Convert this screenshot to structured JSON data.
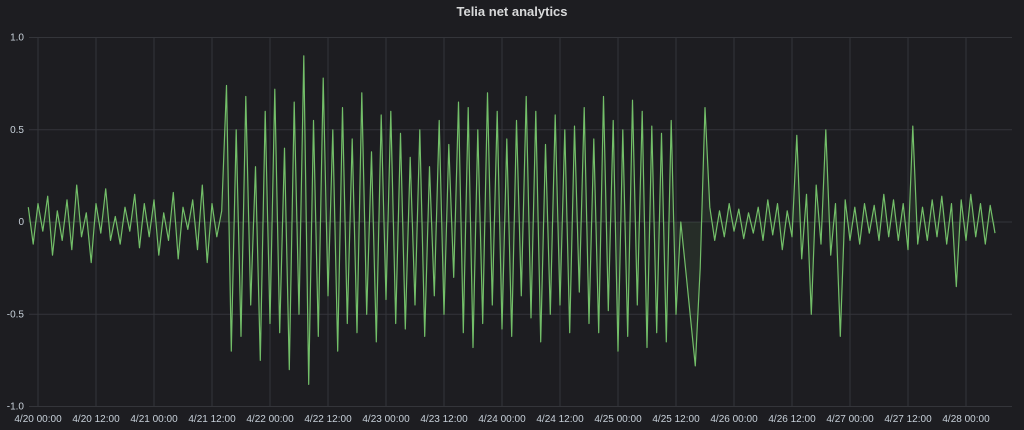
{
  "chart_data": {
    "type": "line",
    "title": "Telia net analytics",
    "xlabel": "",
    "ylabel": "",
    "ylim": [
      -1.0,
      1.0
    ],
    "yticks": [
      "1.0",
      "0.5",
      "0",
      "-0.5",
      "-1.0"
    ],
    "ytick_values": [
      1.0,
      0.5,
      0,
      -0.5,
      -1.0
    ],
    "xticks": [
      "4/20 00:00",
      "4/20 12:00",
      "4/21 00:00",
      "4/21 12:00",
      "4/22 00:00",
      "4/22 12:00",
      "4/23 00:00",
      "4/23 12:00",
      "4/24 00:00",
      "4/24 12:00",
      "4/25 00:00",
      "4/25 12:00",
      "4/26 00:00",
      "4/26 12:00",
      "4/27 00:00",
      "4/27 12:00",
      "4/28 00:00"
    ],
    "xtick_hours": [
      0,
      12,
      24,
      36,
      48,
      60,
      72,
      84,
      96,
      108,
      120,
      132,
      144,
      156,
      168,
      180,
      192
    ],
    "grid": true,
    "series": [
      {
        "name": "Telia net analytics",
        "color": "#73bf69",
        "start_hour_offset": -2,
        "interval_hours": 1,
        "values": [
          0.08,
          -0.12,
          0.1,
          -0.05,
          0.14,
          -0.18,
          0.06,
          -0.1,
          0.12,
          -0.15,
          0.2,
          -0.08,
          0.05,
          -0.22,
          0.1,
          -0.06,
          0.18,
          -0.1,
          0.03,
          -0.12,
          0.08,
          -0.05,
          0.15,
          -0.14,
          0.1,
          -0.08,
          0.12,
          -0.18,
          0.05,
          -0.1,
          0.16,
          -0.2,
          0.08,
          -0.04,
          0.12,
          -0.15,
          0.2,
          -0.22,
          0.1,
          -0.08,
          0.06,
          0.74,
          -0.7,
          0.5,
          -0.62,
          0.68,
          -0.45,
          0.3,
          -0.75,
          0.6,
          -0.55,
          0.72,
          -0.6,
          0.4,
          -0.8,
          0.65,
          -0.5,
          0.9,
          -0.88,
          0.55,
          -0.62,
          0.78,
          -0.4,
          0.5,
          -0.7,
          0.62,
          -0.55,
          0.45,
          -0.6,
          0.7,
          -0.5,
          0.38,
          -0.65,
          0.58,
          -0.42,
          0.6,
          -0.55,
          0.48,
          -0.58,
          0.35,
          -0.45,
          0.5,
          -0.62,
          0.3,
          -0.4,
          0.55,
          -0.5,
          0.42,
          -0.3,
          0.65,
          -0.6,
          0.62,
          -0.68,
          0.5,
          -0.55,
          0.7,
          -0.45,
          0.6,
          -0.58,
          0.45,
          -0.62,
          0.55,
          -0.4,
          0.68,
          -0.52,
          0.6,
          -0.65,
          0.42,
          -0.5,
          0.58,
          -0.45,
          0.5,
          -0.6,
          0.52,
          -0.38,
          0.62,
          -0.55,
          0.45,
          -0.6,
          0.68,
          -0.48,
          0.55,
          -0.7,
          0.5,
          -0.62,
          0.66,
          -0.45,
          0.6,
          -0.68,
          0.52,
          -0.6,
          0.48,
          -0.65,
          0.55,
          -0.5,
          0,
          -0.26,
          -0.52,
          -0.78,
          -0.25,
          0.62,
          0.08,
          -0.1,
          0.06,
          -0.08,
          0.1,
          -0.05,
          0.07,
          -0.09,
          0.05,
          -0.06,
          0.08,
          -0.1,
          0.12,
          -0.07,
          0.1,
          -0.15,
          0.06,
          -0.08,
          0.47,
          -0.2,
          0.15,
          -0.5,
          0.2,
          -0.12,
          0.5,
          -0.18,
          0.1,
          -0.62,
          0.12,
          -0.1,
          0.08,
          -0.12,
          0.1,
          -0.06,
          0.09,
          -0.1,
          0.15,
          -0.08,
          0.12,
          -0.1,
          0.1,
          -0.15,
          0.52,
          -0.12,
          0.08,
          -0.1,
          0.12,
          -0.08,
          0.14,
          -0.12,
          0.1,
          -0.35,
          0.12,
          -0.1,
          0.15,
          -0.08,
          0.1,
          -0.12,
          0.09,
          -0.06
        ]
      }
    ],
    "legend": "none"
  }
}
